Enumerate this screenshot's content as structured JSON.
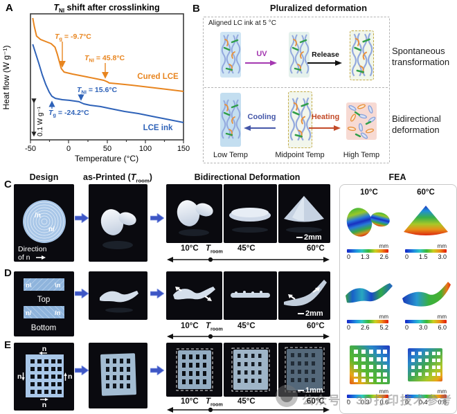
{
  "panel_labels": {
    "a": "A",
    "b": "B",
    "c": "C",
    "d": "D",
    "e": "E"
  },
  "panelA": {
    "title": {
      "sym": "T",
      "sub": "NI",
      "rest": " shift after crosslinking"
    },
    "ylabel": "Heat flow (W g⁻¹)",
    "xlabel": "Temperature (°C)",
    "scalebar": "0.1 W g⁻¹",
    "xticks": [
      "-50",
      "0",
      "50",
      "100",
      "150"
    ],
    "cured": {
      "label": "Cured LCE",
      "tg": {
        "sym": "T",
        "sub": "g",
        "val": " = -9.7°C"
      },
      "tni": {
        "sym": "T",
        "sub": "NI",
        "val": " = 45.8°C"
      }
    },
    "ink": {
      "label": "LCE ink",
      "tg": {
        "sym": "T",
        "sub": "g",
        "val": " = -24.2°C"
      },
      "tni": {
        "sym": "T",
        "sub": "NI",
        "val": " = 15.6°C"
      }
    }
  },
  "panelB": {
    "title": "Pluralized deformation",
    "aligned_label": "Aligned LC ink at 5 °C",
    "uv": "UV",
    "release": "Release",
    "spont_line1": "Spontaneous",
    "spont_line2": "transformation",
    "cooling": "Cooling",
    "heating": "Heating",
    "low": "Low Temp",
    "mid": "Midpoint Temp",
    "high": "High Temp",
    "bidir_line1": "Bidirectional",
    "bidir_line2": "deformation"
  },
  "headers": {
    "design": "Design",
    "printed_pre": "as-Printed (",
    "printed_sym": "T",
    "printed_sub": "room",
    "printed_post": ")",
    "deform": "Bidirectional Deformation",
    "fea": "FEA"
  },
  "temp_axis": {
    "cold": "10°C",
    "room_sym": "T",
    "room_sub": "room",
    "warm": "45°C",
    "hot": "60°C"
  },
  "fea": {
    "cold": "10°C",
    "hot": "60°C",
    "unit": "mm",
    "c": {
      "left": [
        "0",
        "1.3",
        "2.6"
      ],
      "right": [
        "0",
        "1.5",
        "3.0"
      ]
    },
    "d": {
      "left": [
        "0",
        "2.6",
        "5.2"
      ],
      "right": [
        "0",
        "3.0",
        "6.0"
      ]
    },
    "e": {
      "left": [
        "0",
        "0.3",
        "0.6"
      ],
      "right": [
        "0",
        "0.4",
        "0.8"
      ]
    }
  },
  "designC": {
    "n1": "/n",
    "n2": "n/",
    "dir_line1": "Direction",
    "dir_line2": "of n"
  },
  "designD": {
    "tl": "n\\",
    "tr": "\\n",
    "top": "Top",
    "bl": "n/",
    "br": "/n",
    "bottom": "Bottom"
  },
  "designE": {
    "n_top": "n",
    "n_bottom": "n",
    "n_left": "n",
    "n_right": "n"
  },
  "scalebars": {
    "c": "2mm",
    "d": "2mm",
    "e": "1mm"
  },
  "watermark": {
    "text": "公众号 · 3D打印技术参考"
  },
  "chart_data": {
    "type": "line",
    "title": "T_NI shift after crosslinking",
    "xlabel": "Temperature (°C)",
    "ylabel": "Heat flow (W g⁻¹), arbitrary units (scale bar 0.1 W g⁻¹)",
    "xlim": [
      -50,
      150
    ],
    "x_ticks": [
      -50,
      0,
      50,
      100,
      150
    ],
    "grid": false,
    "series": [
      {
        "name": "Cured LCE",
        "color": "#e8851f",
        "Tg_C": -9.7,
        "TNI_C": 45.8,
        "x": [
          -47,
          -45,
          -42,
          -37,
          -30,
          -23,
          -18,
          -15,
          -12,
          -9.7,
          -6,
          5,
          19,
          37,
          45.8,
          50,
          53,
          64,
          82,
          105,
          127,
          150
        ],
        "y_au": [
          0.978,
          0.911,
          0.833,
          0.806,
          0.789,
          0.772,
          0.744,
          0.689,
          0.622,
          0.572,
          0.544,
          0.528,
          0.511,
          0.489,
          0.478,
          0.467,
          0.456,
          0.45,
          0.439,
          0.422,
          0.406,
          0.389
        ]
      },
      {
        "name": "LCE ink",
        "color": "#2e62b8",
        "Tg_C": -24.2,
        "TNI_C": 15.6,
        "x": [
          -47,
          -43.6,
          -39,
          -34.6,
          -30,
          -25.5,
          -22,
          -17.4,
          -8.4,
          0.7,
          7.9,
          13.4,
          15.6,
          19.7,
          27.8,
          41.4,
          55,
          73,
          91,
          114,
          132,
          150
        ],
        "y_au": [
          0.767,
          0.7,
          0.611,
          0.522,
          0.444,
          0.383,
          0.35,
          0.333,
          0.322,
          0.317,
          0.311,
          0.306,
          0.3,
          0.289,
          0.278,
          0.267,
          0.25,
          0.228,
          0.211,
          0.183,
          0.161,
          0.139
        ]
      }
    ],
    "annotations": [
      "Tg = -9.7°C (Cured LCE)",
      "TNI = 45.8°C (Cured LCE)",
      "Tg = -24.2°C (LCE ink)",
      "TNI = 15.6°C (LCE ink)"
    ]
  }
}
